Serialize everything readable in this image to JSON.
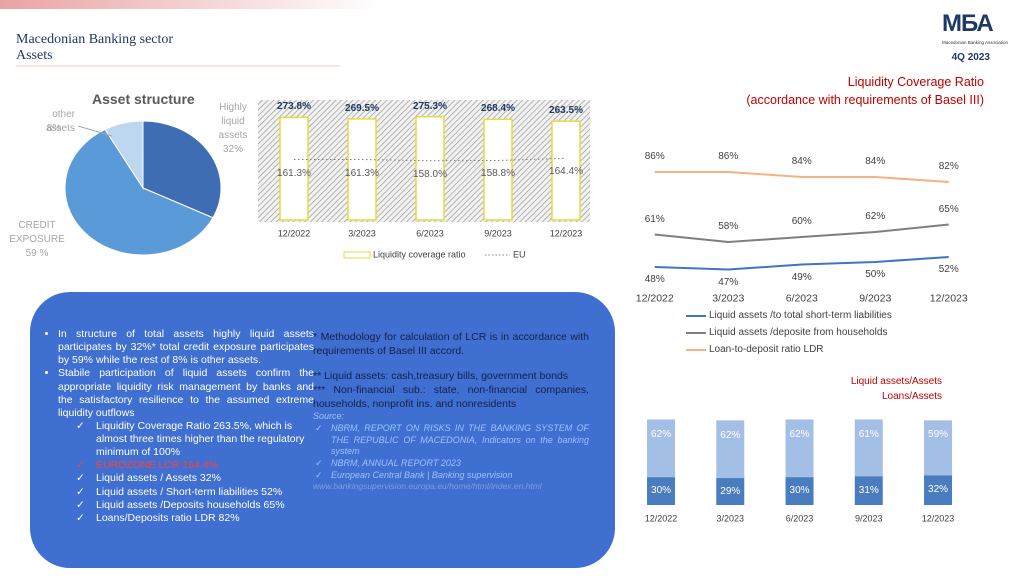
{
  "header": {
    "title": "Macedonian Banking sector",
    "subtitle": "Assets",
    "period": "4Q 2023",
    "logo": "МБА",
    "logo_sub": "Macedonian Banking Association"
  },
  "chart_data": [
    {
      "type": "pie",
      "title": "Asset structure",
      "categories": [
        "Highly liquid assets",
        "CREDIT EXPOSURE",
        "other assets"
      ],
      "values": [
        32,
        59,
        8
      ],
      "value_labels": [
        "32%",
        "59 %",
        "8%"
      ],
      "colors": [
        "#3e6db3",
        "#5b9ad8",
        "#bdd7ee"
      ]
    },
    {
      "type": "bar",
      "title": "Liquidity Coverage Ratio",
      "subtitle": "(accordance with requirements of Basel III)",
      "categories": [
        "12/2022",
        "3/2023",
        "6/2023",
        "9/2023",
        "12/2023"
      ],
      "series": [
        {
          "name": "Liquidity coverage ratio",
          "type": "bar",
          "color": "#e6dc3c",
          "values": [
            273.8,
            269.5,
            275.3,
            268.4,
            263.5
          ],
          "value_labels": [
            "273.8%",
            "269.5%",
            "275.3%",
            "268.4%",
            "263.5%"
          ]
        },
        {
          "name": "EU",
          "type": "line",
          "color": "#7f7f7f",
          "values": [
            161.3,
            161.3,
            158.0,
            158.8,
            164.4
          ],
          "value_labels": [
            "161.3%",
            "161.3%",
            "158.0%",
            "158.8%",
            "164.4%"
          ]
        }
      ],
      "ylim": [
        0,
        320
      ]
    },
    {
      "type": "line",
      "categories": [
        "12/2022",
        "3/2023",
        "6/2023",
        "9/2023",
        "12/2023"
      ],
      "series": [
        {
          "name": "Liquid assets /to total short-term liabilities",
          "color": "#4472c4",
          "values": [
            48,
            47,
            49,
            50,
            52
          ],
          "value_labels": [
            "48%",
            "47%",
            "49%",
            "50%",
            "52%"
          ]
        },
        {
          "name": "Liquid assets /deposite from households",
          "color": "#7f7f7f",
          "values": [
            61,
            58,
            60,
            62,
            65
          ],
          "value_labels": [
            "61%",
            "58%",
            "60%",
            "62%",
            "65%"
          ]
        },
        {
          "name": "Loan-to-deposit ratio LDR",
          "color": "#f4b183",
          "values": [
            86,
            86,
            84,
            84,
            82
          ],
          "value_labels": [
            "86%",
            "86%",
            "84%",
            "84%",
            "82%"
          ]
        }
      ],
      "ylim": [
        40,
        95
      ]
    },
    {
      "type": "bar",
      "stacked": true,
      "categories": [
        "12/2022",
        "3/2023",
        "6/2023",
        "9/2023",
        "12/2023"
      ],
      "series": [
        {
          "name": "Liquid assets/Assets",
          "color": "#4a7dc0",
          "values": [
            30,
            29,
            30,
            31,
            32
          ],
          "value_labels": [
            "30%",
            "29%",
            "30%",
            "31%",
            "32%"
          ]
        },
        {
          "name": "Loans/Assets",
          "color": "#a4bfe5",
          "values": [
            62,
            62,
            62,
            61,
            59
          ],
          "value_labels": [
            "62%",
            "62%",
            "62%",
            "61%",
            "59%"
          ]
        }
      ],
      "ylim": [
        0,
        100
      ]
    }
  ],
  "bullets": [
    {
      "text": "In structure of total assets highly liquid assets participates by 32%* total credit exposure participates by 59% while the rest of 8% is other assets."
    },
    {
      "text": "Stabile participation of liquid assets confirm the appropriate liquidity risk management by banks and the satisfactory resilience to the assumed extreme liquidity outflows",
      "items": [
        "Liquidity Coverage Ratio 263.5%, which is almost three times higher than the regulatory minimum of 100%",
        "EUROZONE LCR 164.4%",
        "Liquid assets / Assets 32%",
        "Liquid assets / Short-term liabilities 52%",
        "Liquid assets /Deposits households 65%",
        "Loans/Deposits ratio LDR 82%"
      ]
    }
  ],
  "notes": {
    "lines": [
      "* Methodology for calculation of LCR is in accordance with requirements of Basel III accord.",
      "** Liquid assets: cash,treasury bills, government bonds",
      "*** Non-financial sub.: state, non-financial companies, households, nonprofit ins. and nonresidents"
    ],
    "source_label": "Source:",
    "sources": [
      "NBRM, REPORT ON RISKS IN THE BANKING SYSTEM OF THE REPUBLIC OF MACEDONIA, Indicators on the banking system",
      "NBRM, ANNUAL REPORT 2023",
      "European Central Bank | Banking supervision"
    ],
    "link": "www.bankingsupervision.europa.eu/home/html/index.en.html"
  }
}
